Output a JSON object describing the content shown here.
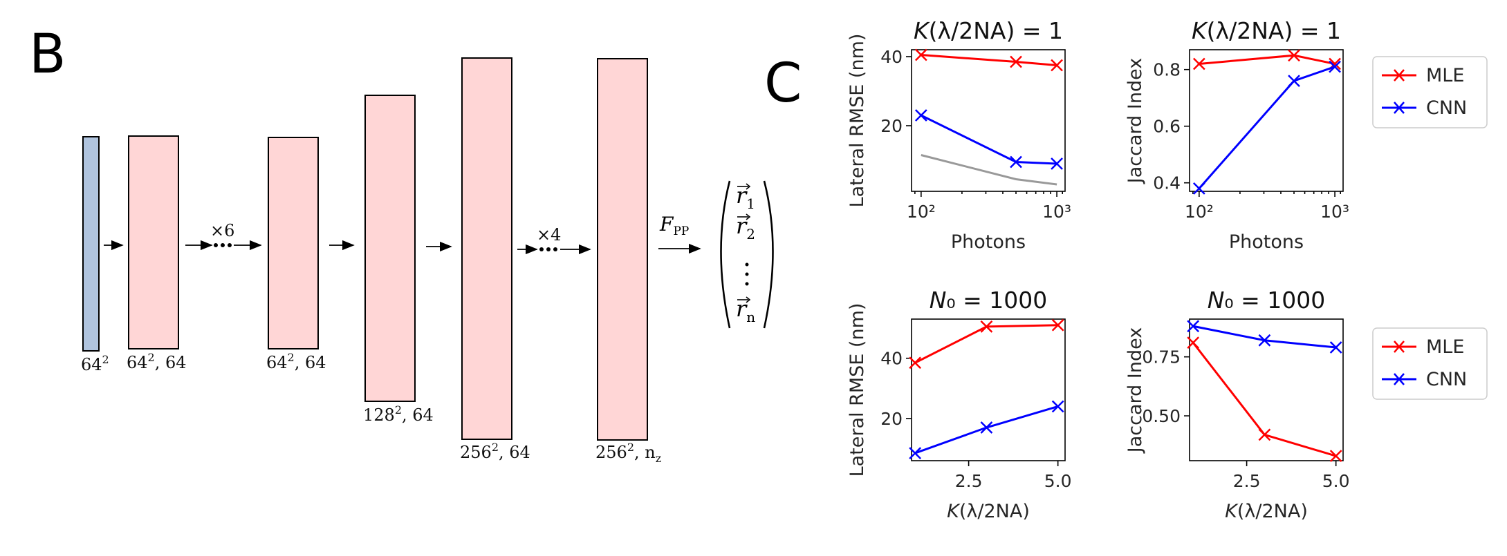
{
  "panel_b": {
    "letter": "B",
    "blocks": [
      {
        "label_base": "64",
        "label_sup": "2",
        "label_rest": ""
      },
      {
        "label_base": "64",
        "label_sup": "2",
        "label_rest": ", 64"
      },
      {
        "label_base": "64",
        "label_sup": "2",
        "label_rest": ", 64"
      },
      {
        "label_base": "128",
        "label_sup": "2",
        "label_rest": ", 64"
      },
      {
        "label_base": "256",
        "label_sup": "2",
        "label_rest": ", 64"
      },
      {
        "label_base": "256",
        "label_sup": "2",
        "label_rest": ", n",
        "label_sub": "z"
      }
    ],
    "repeat_1": "×6",
    "repeat_2": "×4",
    "fpp_base": "F",
    "fpp_sub": "PP",
    "output_r1": "r",
    "output_r1_sub": "1",
    "output_r2": "r",
    "output_r2_sub": "2",
    "output_rn": "r",
    "output_rn_sub": "n",
    "colors": {
      "input": "#b0c4de",
      "layer": "#ffd6d6"
    }
  },
  "panel_c": {
    "letter": "C"
  },
  "legend": {
    "top": [
      "MLE",
      "CNN"
    ],
    "bottom": [
      "MLE",
      "CNN"
    ]
  },
  "chart_data": [
    {
      "type": "line",
      "title": "K(λ/2NA) = 1",
      "xlabel": "Photons",
      "ylabel": "Lateral RMSE (nm)",
      "xscale": "log",
      "xlim": [
        85,
        1150
      ],
      "ylim": [
        1,
        42
      ],
      "xticks": [
        100,
        1000
      ],
      "xtick_labels": [
        "10²",
        "10³"
      ],
      "yticks": [
        20,
        40
      ],
      "ytick_labels": [
        "20",
        "40"
      ],
      "series": [
        {
          "name": "MLE",
          "color": "#ff0000",
          "marker": "x",
          "x": [
            100,
            500,
            1000
          ],
          "y": [
            40.5,
            38.5,
            37.5
          ]
        },
        {
          "name": "CNN",
          "color": "#0000ff",
          "marker": "x",
          "x": [
            100,
            500,
            1000
          ],
          "y": [
            23,
            9.5,
            9
          ]
        },
        {
          "color": "#999999",
          "marker": "none",
          "x": [
            100,
            500,
            1000
          ],
          "y": [
            11.5,
            4.5,
            3
          ]
        }
      ]
    },
    {
      "type": "line",
      "title": "K(λ/2NA) = 1",
      "xlabel": "Photons",
      "ylabel": "Jaccard Index",
      "xscale": "log",
      "xlim": [
        85,
        1150
      ],
      "ylim": [
        0.37,
        0.87
      ],
      "xticks": [
        100,
        1000
      ],
      "xtick_labels": [
        "10²",
        "10³"
      ],
      "yticks": [
        0.4,
        0.6,
        0.8
      ],
      "ytick_labels": [
        "0.4",
        "0.6",
        "0.8"
      ],
      "series": [
        {
          "name": "MLE",
          "color": "#ff0000",
          "marker": "x",
          "x": [
            100,
            500,
            1000
          ],
          "y": [
            0.82,
            0.85,
            0.82
          ]
        },
        {
          "name": "CNN",
          "color": "#0000ff",
          "marker": "x",
          "x": [
            100,
            500,
            1000
          ],
          "y": [
            0.38,
            0.76,
            0.81
          ]
        }
      ]
    },
    {
      "type": "line",
      "title": "N₀ = 1000",
      "xlabel": "K(λ/2NA)",
      "ylabel": "Lateral RMSE (nm)",
      "xscale": "linear",
      "xlim": [
        0.9,
        5.2
      ],
      "ylim": [
        6,
        53
      ],
      "xticks": [
        2.5,
        5.0
      ],
      "xtick_labels": [
        "2.5",
        "5.0"
      ],
      "yticks": [
        20,
        40
      ],
      "ytick_labels": [
        "20",
        "40"
      ],
      "series": [
        {
          "name": "MLE",
          "color": "#ff0000",
          "marker": "x",
          "x": [
            1,
            3,
            5
          ],
          "y": [
            38.5,
            50.5,
            51
          ]
        },
        {
          "name": "CNN",
          "color": "#0000ff",
          "marker": "x",
          "x": [
            1,
            3,
            5
          ],
          "y": [
            8.5,
            17,
            24
          ]
        }
      ]
    },
    {
      "type": "line",
      "title": "N₀ = 1000",
      "xlabel": "K(λ/2NA)",
      "ylabel": "Jaccard Index",
      "xscale": "linear",
      "xlim": [
        0.9,
        5.2
      ],
      "ylim": [
        0.31,
        0.91
      ],
      "xticks": [
        2.5,
        5.0
      ],
      "xtick_labels": [
        "2.5",
        "5.0"
      ],
      "yticks": [
        0.5,
        0.75
      ],
      "ytick_labels": [
        "0.50",
        "0.75"
      ],
      "series": [
        {
          "name": "MLE",
          "color": "#ff0000",
          "marker": "x",
          "x": [
            1,
            3,
            5
          ],
          "y": [
            0.81,
            0.42,
            0.33
          ]
        },
        {
          "name": "CNN",
          "color": "#0000ff",
          "marker": "x",
          "x": [
            1,
            3,
            5
          ],
          "y": [
            0.88,
            0.82,
            0.79
          ]
        }
      ]
    }
  ]
}
